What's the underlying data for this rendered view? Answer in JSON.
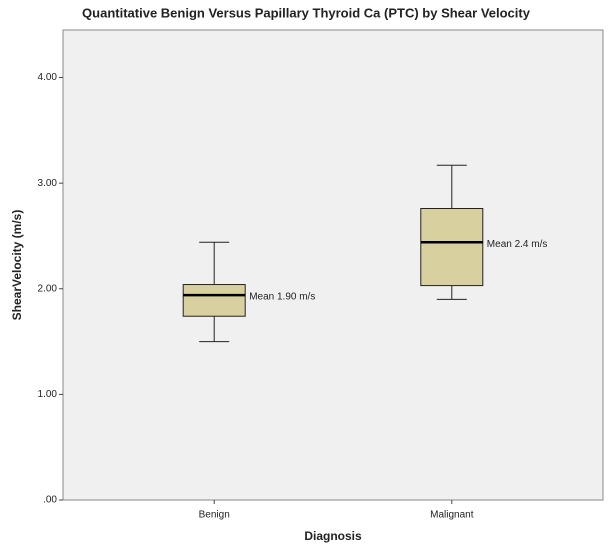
{
  "chart_data": {
    "type": "box",
    "title": "Quantitative Benign Versus Papillary Thyroid Ca (PTC) by Shear Velocity",
    "x_label": "Diagnosis",
    "y_label": "ShearVelocity (m/s)",
    "categories": [
      "Benign",
      "Malignant"
    ],
    "boxes": [
      {
        "whislo": 1.5,
        "q1": 1.74,
        "med": 1.94,
        "q3": 2.04,
        "whishi": 2.44
      },
      {
        "whislo": 1.9,
        "q1": 2.03,
        "med": 2.44,
        "q3": 2.76,
        "whishi": 3.17
      }
    ],
    "annotations": [
      "Mean 1.90 m/s",
      "Mean 2.4 m/s"
    ],
    "color": "#d9d0a0",
    "ylim": [
      0,
      4.45
    ],
    "yticks": [
      {
        "value": 0,
        "label": ".00"
      },
      {
        "value": 1,
        "label": "1.00"
      },
      {
        "value": 2,
        "label": "2.00"
      },
      {
        "value": 3,
        "label": "3.00"
      },
      {
        "value": 4,
        "label": "4.00"
      }
    ]
  }
}
